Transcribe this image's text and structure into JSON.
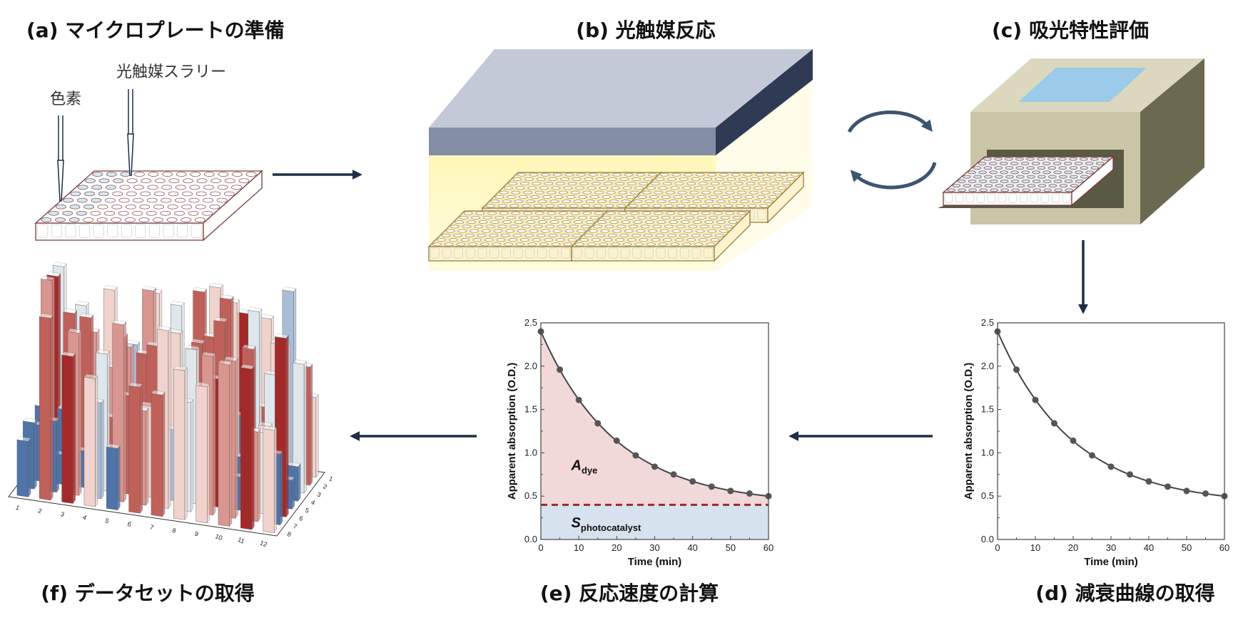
{
  "panels": {
    "a": {
      "title": "(a) マイクロプレートの準備",
      "dye_label": "色素",
      "slurry_label": "光触媒スラリー"
    },
    "b": {
      "title": "(b) 光触媒反応"
    },
    "c": {
      "title": "(c) 吸光特性評価"
    },
    "d": {
      "title": "(d) 減衰曲線の取得"
    },
    "e": {
      "title": "(e) 反応速度の計算",
      "area_dye": "A",
      "area_dye_sub": "dye",
      "area_cat": "S",
      "area_cat_sub": "photocatalyst"
    },
    "f": {
      "title": "(f) データセットの取得",
      "x_ticks": [
        "1",
        "2",
        "3",
        "4",
        "5",
        "6",
        "7",
        "8",
        "9",
        "10",
        "11",
        "12"
      ],
      "y_ticks": [
        "1",
        "2",
        "3",
        "4",
        "5",
        "6",
        "7",
        "8"
      ]
    }
  },
  "colors": {
    "arrow": "#1f2d45",
    "dye_area": "#f2d9d9",
    "cat_area": "#d6e3ee",
    "baseline": "#a02828",
    "curve": "#444444",
    "box": "#cfcbaa",
    "bar_palette": [
      "#a32a2a",
      "#c0605a",
      "#d9958f",
      "#efd3cc",
      "#dfe6ec",
      "#a9bdd7",
      "#4f74a8"
    ]
  },
  "icons": {
    "cycle": "cycle-arrows-icon"
  },
  "chart_data": [
    {
      "id": "e",
      "type": "line",
      "xlabel": "Time (min)",
      "ylabel": "Apparent absorption (O.D.)",
      "xlim": [
        0,
        60
      ],
      "ylim": [
        0,
        2.5
      ],
      "x_ticks": [
        "0",
        "10",
        "20",
        "30",
        "40",
        "50",
        "60"
      ],
      "y_ticks": [
        "0.0",
        "0.5",
        "1.0",
        "1.5",
        "2.0",
        "2.5"
      ],
      "x": [
        0,
        5,
        10,
        15,
        20,
        25,
        30,
        35,
        40,
        45,
        50,
        55,
        60
      ],
      "y": [
        2.4,
        1.96,
        1.61,
        1.34,
        1.14,
        0.97,
        0.84,
        0.75,
        0.67,
        0.61,
        0.56,
        0.53,
        0.5
      ],
      "baseline": 0.4,
      "shaded": true
    },
    {
      "id": "d",
      "type": "line",
      "xlabel": "Time (min)",
      "ylabel": "Apparent absorption (O.D.)",
      "xlim": [
        0,
        60
      ],
      "ylim": [
        0,
        2.5
      ],
      "x_ticks": [
        "0",
        "10",
        "20",
        "30",
        "40",
        "50",
        "60"
      ],
      "y_ticks": [
        "0.0",
        "0.5",
        "1.0",
        "1.5",
        "2.0",
        "2.5"
      ],
      "x": [
        0,
        5,
        10,
        15,
        20,
        25,
        30,
        35,
        40,
        45,
        50,
        55,
        60
      ],
      "y": [
        2.4,
        1.96,
        1.61,
        1.34,
        1.14,
        0.97,
        0.84,
        0.75,
        0.67,
        0.61,
        0.56,
        0.53,
        0.5
      ],
      "shaded": false
    }
  ]
}
